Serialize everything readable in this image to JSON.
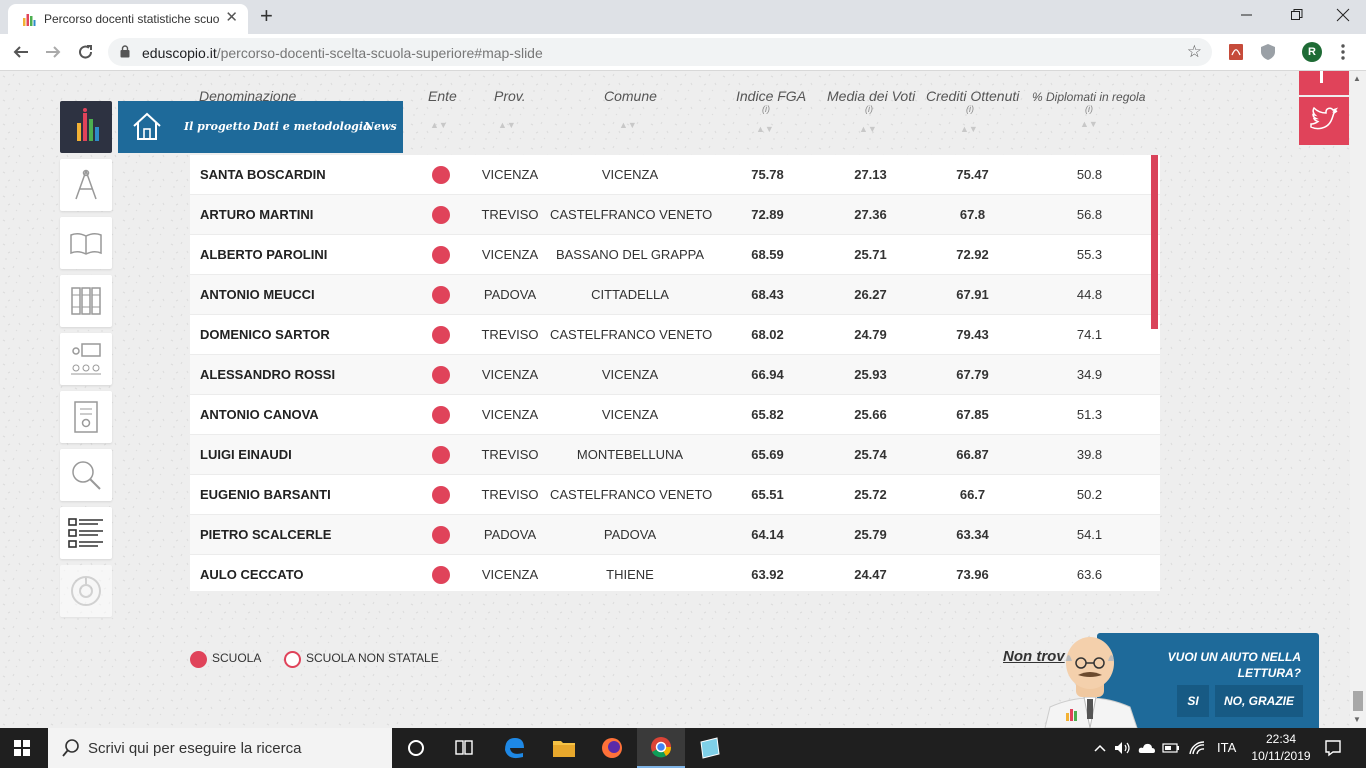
{
  "browser": {
    "tab_title": "Percorso docenti statistiche scuo",
    "tab_close": "✕",
    "new_tab": "+",
    "url_host": "eduscopio.it",
    "url_path": "/percorso-docenti-scelta-scuola-superiore#map-slide",
    "profile_initial": "R"
  },
  "nav": {
    "links": [
      "Il progetto",
      "Dati e metodologia",
      "News"
    ]
  },
  "table": {
    "headers": {
      "name": "Denominazione",
      "ente": "Ente",
      "prov": "Prov.",
      "comune": "Comune",
      "fga": "Indice FGA",
      "media": "Media dei Voti",
      "crediti": "Crediti Ottenuti",
      "diplomati": "% Diplomati in regola",
      "info": "(i)"
    },
    "rows": [
      {
        "name": "SANTA BOSCARDIN",
        "prov": "VICENZA",
        "comune": "VICENZA",
        "fga": "75.78",
        "media": "27.13",
        "crediti": "75.47",
        "diplomati": "50.8"
      },
      {
        "name": "ARTURO MARTINI",
        "prov": "TREVISO",
        "comune": "CASTELFRANCO VENETO",
        "fga": "72.89",
        "media": "27.36",
        "crediti": "67.8",
        "diplomati": "56.8"
      },
      {
        "name": "ALBERTO PAROLINI",
        "prov": "VICENZA",
        "comune": "BASSANO DEL GRAPPA",
        "fga": "68.59",
        "media": "25.71",
        "crediti": "72.92",
        "diplomati": "55.3"
      },
      {
        "name": "ANTONIO MEUCCI",
        "prov": "PADOVA",
        "comune": "CITTADELLA",
        "fga": "68.43",
        "media": "26.27",
        "crediti": "67.91",
        "diplomati": "44.8"
      },
      {
        "name": "DOMENICO SARTOR",
        "prov": "TREVISO",
        "comune": "CASTELFRANCO VENETO",
        "fga": "68.02",
        "media": "24.79",
        "crediti": "79.43",
        "diplomati": "74.1"
      },
      {
        "name": "ALESSANDRO ROSSI",
        "prov": "VICENZA",
        "comune": "VICENZA",
        "fga": "66.94",
        "media": "25.93",
        "crediti": "67.79",
        "diplomati": "34.9"
      },
      {
        "name": "ANTONIO CANOVA",
        "prov": "VICENZA",
        "comune": "VICENZA",
        "fga": "65.82",
        "media": "25.66",
        "crediti": "67.85",
        "diplomati": "51.3"
      },
      {
        "name": "LUIGI EINAUDI",
        "prov": "TREVISO",
        "comune": "MONTEBELLUNA",
        "fga": "65.69",
        "media": "25.74",
        "crediti": "66.87",
        "diplomati": "39.8"
      },
      {
        "name": "EUGENIO BARSANTI",
        "prov": "TREVISO",
        "comune": "CASTELFRANCO VENETO",
        "fga": "65.51",
        "media": "25.72",
        "crediti": "66.7",
        "diplomati": "50.2"
      },
      {
        "name": "PIETRO SCALCERLE",
        "prov": "PADOVA",
        "comune": "PADOVA",
        "fga": "64.14",
        "media": "25.79",
        "crediti": "63.34",
        "diplomati": "54.1"
      },
      {
        "name": "AULO CECCATO",
        "prov": "VICENZA",
        "comune": "THIENE",
        "fga": "63.92",
        "media": "24.47",
        "crediti": "73.96",
        "diplomati": "63.6"
      }
    ]
  },
  "legend": {
    "scuola": "SCUOLA",
    "non_statale": "SCUOLA NON STATALE"
  },
  "non_trovi": "Non trov",
  "help": {
    "question": "VUOI UN AIUTO NELLA LETTURA?",
    "yes": "SI",
    "no": "NO, GRAZIE"
  },
  "taskbar": {
    "search_placeholder": "Scrivi qui per eseguire la ricerca",
    "lang": "ITA",
    "time": "22:34",
    "date": "10/11/2019"
  },
  "colors": {
    "accent_red": "#e0435a",
    "nav_blue": "#1e6a9a",
    "logo_dark": "#2d3241"
  }
}
